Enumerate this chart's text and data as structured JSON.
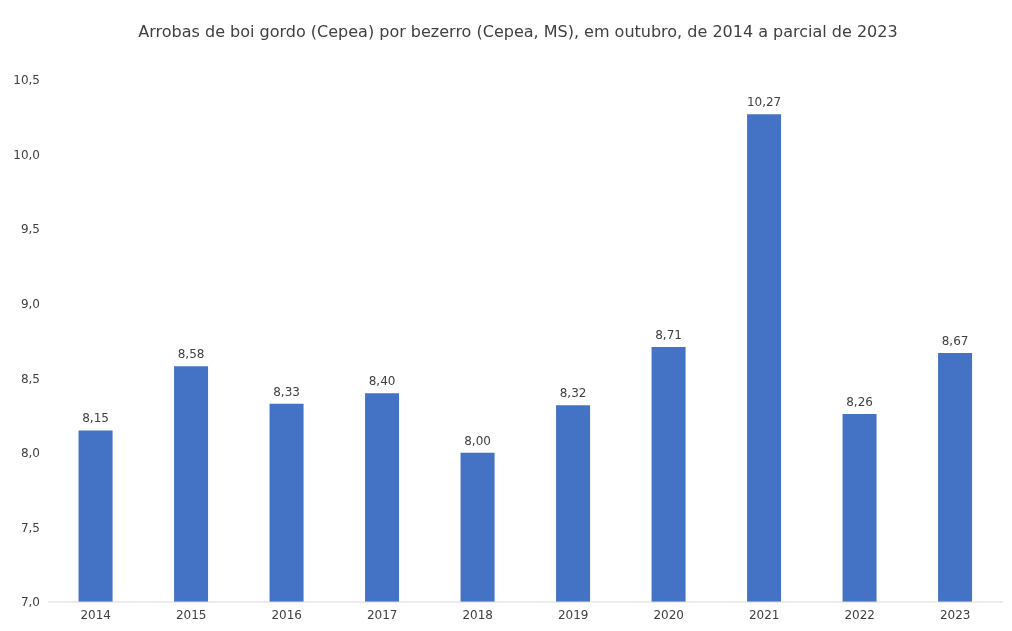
{
  "chart_data": {
    "type": "bar",
    "title": "Arrobas de boi gordo (Cepea) por bezerro (Cepea, MS), em outubro, de 2014 a parcial de 2023",
    "categories": [
      "2014",
      "2015",
      "2016",
      "2017",
      "2018",
      "2019",
      "2020",
      "2021",
      "2022",
      "2023"
    ],
    "values": [
      8.15,
      8.58,
      8.33,
      8.4,
      8.0,
      8.32,
      8.71,
      10.27,
      8.26,
      8.67
    ],
    "value_labels": [
      "8,15",
      "8,58",
      "8,33",
      "8,40",
      "8,00",
      "8,32",
      "8,71",
      "10,27",
      "8,26",
      "8,67"
    ],
    "color": "#4472c4",
    "ylim": [
      7,
      10.5
    ],
    "yticks": [
      {
        "value": 7,
        "label": "7,0"
      },
      {
        "value": 7.5,
        "label": "7,5"
      },
      {
        "value": 8,
        "label": "8,0"
      },
      {
        "value": 8.5,
        "label": "8,5"
      },
      {
        "value": 9,
        "label": "9,0"
      },
      {
        "value": 9.5,
        "label": "9,5"
      },
      {
        "value": 10,
        "label": "10,0"
      },
      {
        "value": 10.5,
        "label": "10,5"
      }
    ],
    "grid": false
  }
}
